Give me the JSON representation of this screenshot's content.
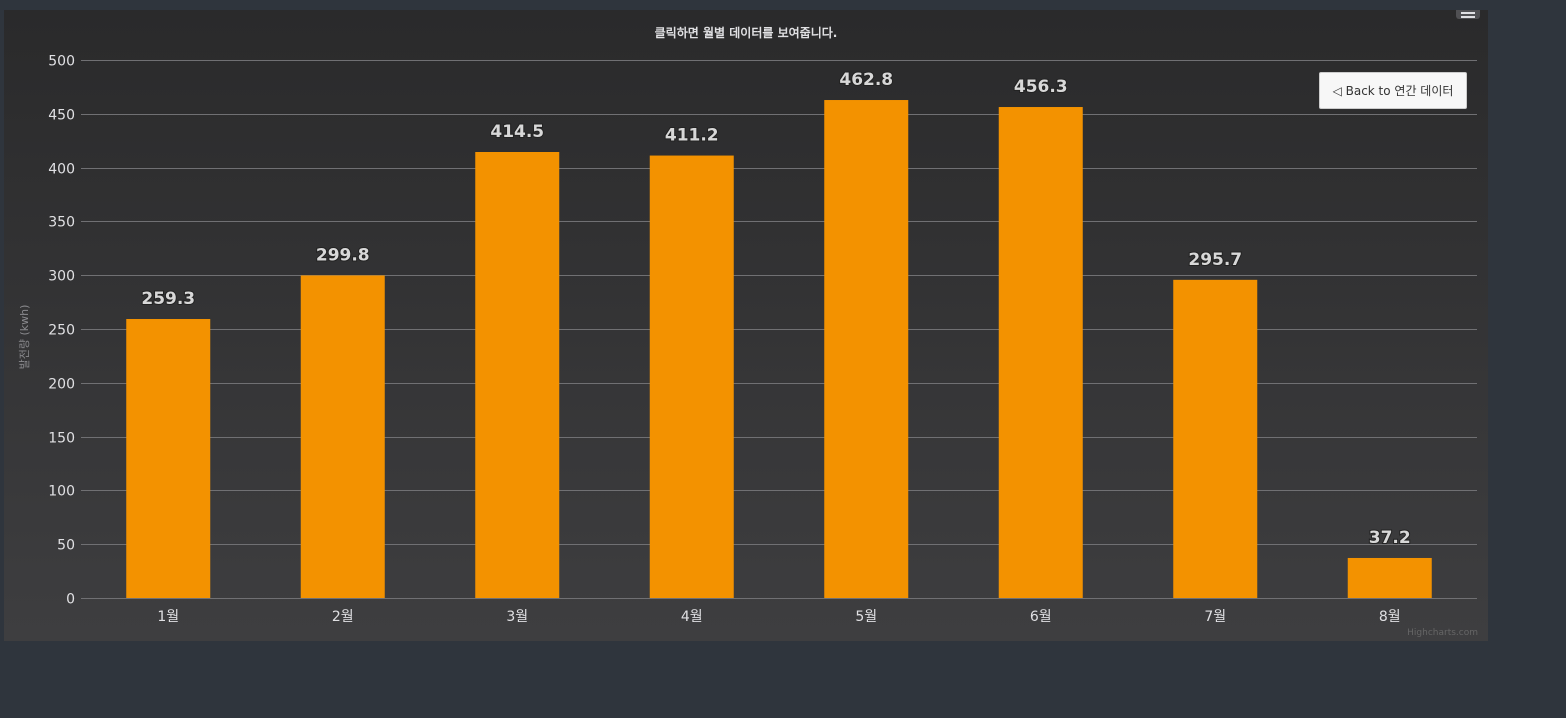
{
  "subtitle": "클릭하면 월별 데이터를 보여줍니다.",
  "back_button_label": "◁ Back to 연간 데이터",
  "credits": "Highcharts.com",
  "colors": {
    "bar": "#f39200",
    "axis_text": "#e0e0e3",
    "data_label": "#d8d8d8",
    "grid": "#707073",
    "page_background": "#2f353d"
  },
  "chart_data": {
    "type": "bar",
    "title": "",
    "subtitle": "클릭하면 월별 데이터를 보여줍니다.",
    "xlabel": "",
    "ylabel": "발전량 (kwh)",
    "categories": [
      "1월",
      "2월",
      "3월",
      "4월",
      "5월",
      "6월",
      "7월",
      "8월"
    ],
    "values": [
      259.3,
      299.8,
      414.5,
      411.2,
      462.8,
      456.3,
      295.7,
      37.2
    ],
    "value_labels": [
      "259.3",
      "299.8",
      "414.5",
      "411.2",
      "462.8",
      "456.3",
      "295.7",
      "37.2"
    ],
    "ylim": [
      0,
      500
    ],
    "yticks": [
      0,
      50,
      100,
      150,
      200,
      250,
      300,
      350,
      400,
      450,
      500
    ],
    "grid": true,
    "legend": "none"
  }
}
